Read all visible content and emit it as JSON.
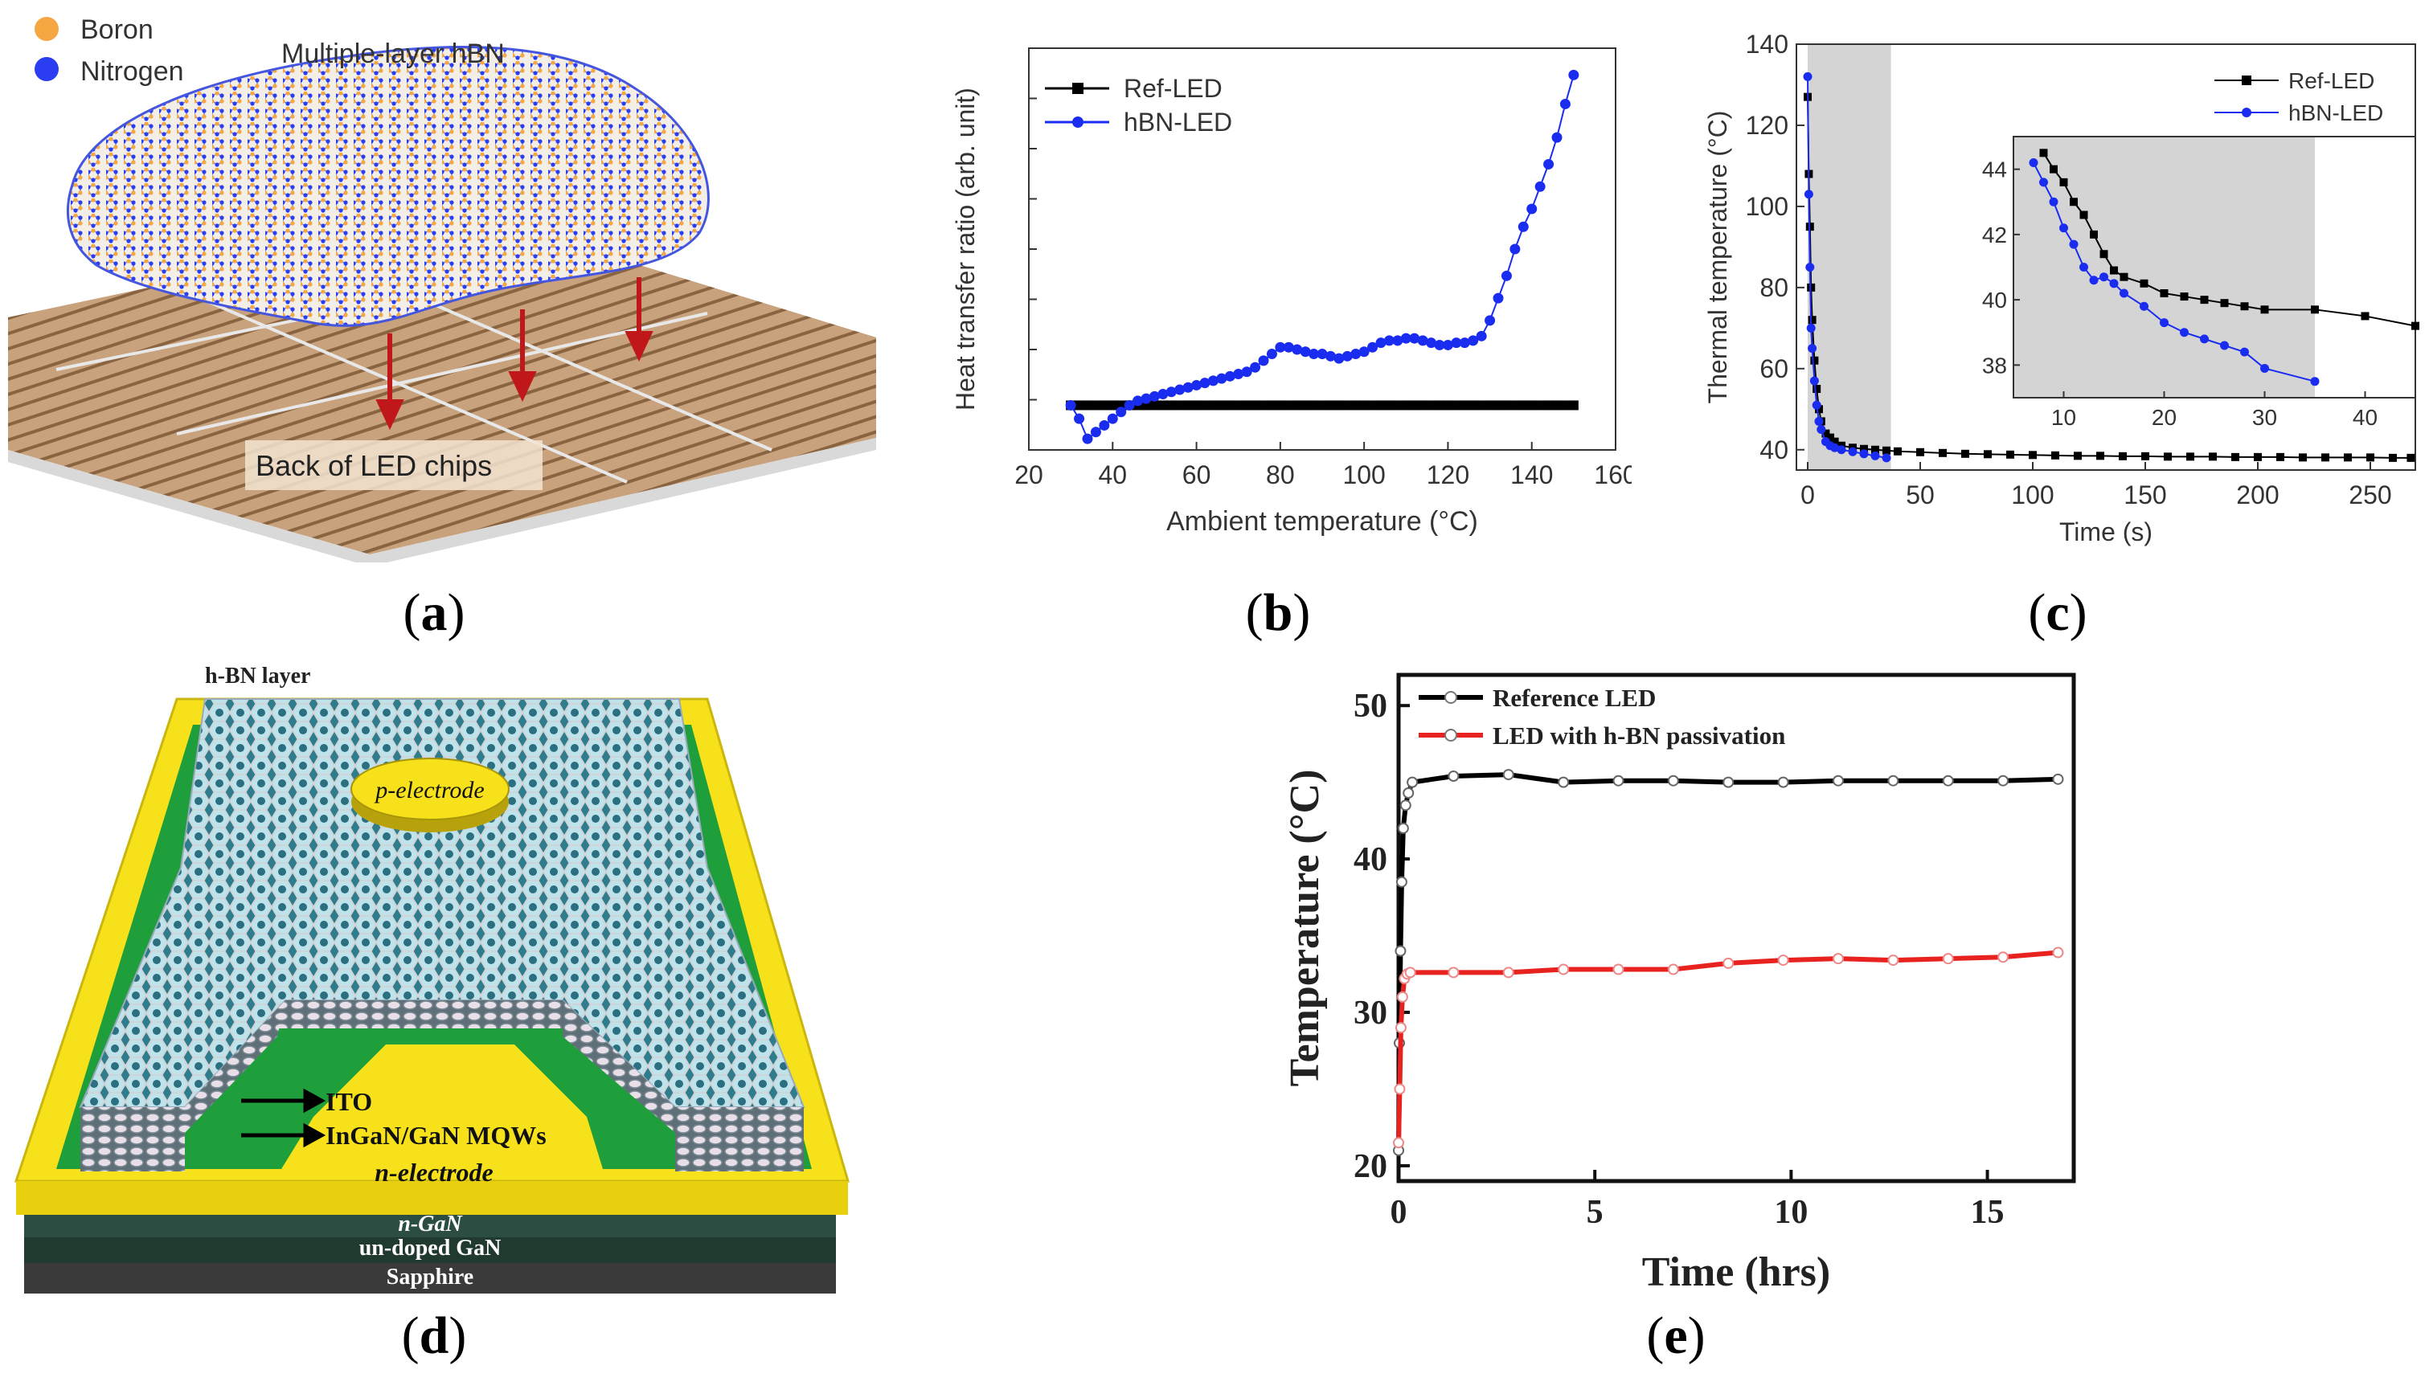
{
  "panel_labels": {
    "a": "a",
    "b": "b",
    "c": "c",
    "d": "d",
    "e": "e"
  },
  "panel_a": {
    "legend": [
      "Boron",
      "Nitrogen"
    ],
    "title": "Multiple-layer hBN",
    "caption": "Back of LED chips",
    "colors": {
      "boron": "#f5a742",
      "nitrogen": "#2a3df0",
      "arrow": "#c0181a",
      "chip": "#c8a27c"
    }
  },
  "panel_d": {
    "top_label": "h-BN layer",
    "p_electrode": "p-electrode",
    "ito": "ITO",
    "mqw": "InGaN/GaN MQWs",
    "n_electrode": "n-electrode",
    "n_gan": "n-GaN",
    "undoped": "un-doped GaN",
    "sapphire": "Sapphire",
    "colors": {
      "yellow": "#f7e11a",
      "green": "#1f9e3c",
      "teal": "#3a8a9c",
      "dark": "#2c3a34"
    }
  },
  "chart_data": [
    {
      "id": "b",
      "type": "line",
      "title": "",
      "xlabel": "Ambient temperature (°C)",
      "ylabel": "Heat transfer ratio (arb. unit)",
      "xlim": [
        20,
        160
      ],
      "ylim": [
        -0.2,
        1.6
      ],
      "xticks": [
        "20",
        "40",
        "60",
        "80",
        "100",
        "120",
        "140",
        "160"
      ],
      "legend": "top-left",
      "series": [
        {
          "name": "Ref-LED",
          "color": "#000000",
          "x": [
            30,
            32,
            34,
            36,
            38,
            40,
            42,
            44,
            46,
            48,
            50,
            52,
            54,
            56,
            58,
            60,
            62,
            64,
            66,
            68,
            70,
            72,
            74,
            76,
            78,
            80,
            82,
            84,
            86,
            88,
            90,
            92,
            94,
            96,
            98,
            100,
            102,
            104,
            106,
            108,
            110,
            112,
            114,
            116,
            118,
            120,
            122,
            124,
            126,
            128,
            130,
            132,
            134,
            136,
            138,
            140,
            142,
            144,
            146,
            148,
            150
          ],
          "y": [
            0,
            0,
            0,
            0,
            0,
            0,
            0,
            0,
            0,
            0,
            0,
            0,
            0,
            0,
            0,
            0,
            0,
            0,
            0,
            0,
            0,
            0,
            0,
            0,
            0,
            0,
            0,
            0,
            0,
            0,
            0,
            0,
            0,
            0,
            0,
            0,
            0,
            0,
            0,
            0,
            0,
            0,
            0,
            0,
            0,
            0,
            0,
            0,
            0,
            0,
            0,
            0,
            0,
            0,
            0,
            0,
            0,
            0,
            0,
            0,
            0
          ]
        },
        {
          "name": "hBN-LED",
          "color": "#1a2cf0",
          "x": [
            30,
            32,
            34,
            36,
            38,
            40,
            42,
            44,
            46,
            48,
            50,
            52,
            54,
            56,
            58,
            60,
            62,
            64,
            66,
            68,
            70,
            72,
            74,
            76,
            78,
            80,
            82,
            84,
            86,
            88,
            90,
            92,
            94,
            96,
            98,
            100,
            102,
            104,
            106,
            108,
            110,
            112,
            114,
            116,
            118,
            120,
            122,
            124,
            126,
            128,
            130,
            132,
            134,
            136,
            138,
            140,
            142,
            144,
            146,
            148,
            150
          ],
          "y": [
            0.0,
            -0.06,
            -0.15,
            -0.12,
            -0.09,
            -0.06,
            -0.03,
            0.0,
            0.02,
            0.03,
            0.04,
            0.05,
            0.06,
            0.07,
            0.08,
            0.09,
            0.1,
            0.11,
            0.12,
            0.13,
            0.14,
            0.15,
            0.17,
            0.2,
            0.23,
            0.26,
            0.26,
            0.25,
            0.24,
            0.23,
            0.23,
            0.22,
            0.21,
            0.22,
            0.23,
            0.24,
            0.26,
            0.28,
            0.29,
            0.29,
            0.3,
            0.3,
            0.29,
            0.28,
            0.27,
            0.27,
            0.28,
            0.28,
            0.29,
            0.31,
            0.38,
            0.48,
            0.58,
            0.7,
            0.8,
            0.88,
            0.98,
            1.08,
            1.2,
            1.35,
            1.48
          ]
        }
      ]
    },
    {
      "id": "c",
      "type": "line",
      "xlabel": "Time (s)",
      "ylabel": "Thermal temperature (°C)",
      "xlim": [
        -5,
        270
      ],
      "ylim": [
        35,
        140
      ],
      "xticks": [
        "0",
        "50",
        "100",
        "150",
        "200",
        "250"
      ],
      "yticks": [
        "40",
        "60",
        "80",
        "100",
        "120",
        "140"
      ],
      "shaded_x": [
        0,
        37
      ],
      "legend": "top-right",
      "series": [
        {
          "name": "Ref-LED",
          "color": "#000000",
          "x": [
            0,
            0.5,
            1,
            1.5,
            2,
            3,
            4,
            5,
            6,
            8,
            10,
            12,
            15,
            20,
            25,
            30,
            35,
            40,
            50,
            60,
            70,
            80,
            90,
            100,
            110,
            120,
            130,
            140,
            150,
            160,
            170,
            180,
            190,
            200,
            210,
            220,
            230,
            240,
            250,
            260,
            268
          ],
          "y": [
            127,
            108,
            95,
            80,
            72,
            62,
            55,
            50,
            47,
            44,
            43,
            42,
            41,
            40.5,
            40.2,
            40,
            39.8,
            39.6,
            39.4,
            39.2,
            39,
            38.9,
            38.8,
            38.7,
            38.6,
            38.5,
            38.5,
            38.4,
            38.4,
            38.3,
            38.3,
            38.3,
            38.2,
            38.2,
            38.2,
            38.1,
            38.1,
            38.1,
            38.1,
            38,
            38
          ]
        },
        {
          "name": "hBN-LED",
          "color": "#1a2cf0",
          "x": [
            0,
            0.5,
            1,
            1.5,
            2,
            3,
            4,
            5,
            6,
            8,
            10,
            12,
            15,
            20,
            25,
            30,
            35
          ],
          "y": [
            132,
            103,
            85,
            70,
            65,
            57,
            51,
            47,
            45,
            42,
            41,
            40.5,
            40,
            39.5,
            39,
            38.5,
            38
          ]
        }
      ],
      "inset": {
        "xlim": [
          5,
          45
        ],
        "ylim": [
          37,
          45
        ],
        "xticks": [
          "10",
          "20",
          "30",
          "40"
        ],
        "yticks": [
          "38",
          "40",
          "42",
          "44"
        ],
        "shaded_x": [
          5,
          35
        ],
        "series": [
          {
            "name": "Ref-LED",
            "x": [
              8,
              9,
              10,
              11,
              12,
              13,
              14,
              15,
              16,
              18,
              20,
              22,
              24,
              26,
              28,
              30,
              35,
              40,
              45
            ],
            "y": [
              44.5,
              44.0,
              43.6,
              43.0,
              42.6,
              42.0,
              41.4,
              40.9,
              40.7,
              40.5,
              40.2,
              40.1,
              40.0,
              39.9,
              39.8,
              39.7,
              39.7,
              39.5,
              39.2
            ]
          },
          {
            "name": "hBN-LED",
            "x": [
              7,
              8,
              9,
              10,
              11,
              12,
              13,
              14,
              15,
              16,
              18,
              20,
              22,
              24,
              26,
              28,
              30,
              35
            ],
            "y": [
              44.2,
              43.6,
              43.0,
              42.2,
              41.7,
              41.0,
              40.6,
              40.7,
              40.5,
              40.2,
              39.8,
              39.3,
              39.0,
              38.8,
              38.6,
              38.4,
              37.9,
              37.5
            ]
          }
        ]
      }
    },
    {
      "id": "e",
      "type": "line",
      "xlabel": "Time (hrs)",
      "ylabel": "Temperature (°C)",
      "xlim": [
        0,
        17.2
      ],
      "ylim": [
        19,
        52
      ],
      "xticks": [
        "0",
        "5",
        "10",
        "15"
      ],
      "yticks": [
        "20",
        "30",
        "40",
        "50"
      ],
      "legend": "top-left",
      "series": [
        {
          "name": "Reference LED",
          "color": "#000000",
          "x": [
            0,
            0.02,
            0.05,
            0.08,
            0.12,
            0.18,
            0.25,
            0.35,
            1.4,
            2.8,
            4.2,
            5.6,
            7.0,
            8.4,
            9.8,
            11.2,
            12.6,
            14.0,
            15.4,
            16.8
          ],
          "y": [
            21,
            28,
            34,
            38.5,
            42,
            43.5,
            44.3,
            45,
            45.4,
            45.5,
            45,
            45.1,
            45.1,
            45,
            45,
            45.1,
            45.1,
            45.1,
            45.1,
            45.2
          ]
        },
        {
          "name": "LED with h-BN passivation",
          "color": "#e8221f",
          "x": [
            0,
            0.03,
            0.06,
            0.1,
            0.15,
            0.22,
            0.3,
            1.4,
            2.8,
            4.2,
            5.6,
            7.0,
            8.4,
            9.8,
            11.2,
            12.6,
            14.0,
            15.4,
            16.8
          ],
          "y": [
            21.5,
            25,
            29,
            31,
            32.2,
            32.5,
            32.6,
            32.6,
            32.6,
            32.8,
            32.8,
            32.8,
            33.2,
            33.4,
            33.5,
            33.4,
            33.5,
            33.6,
            33.9
          ]
        }
      ]
    }
  ]
}
